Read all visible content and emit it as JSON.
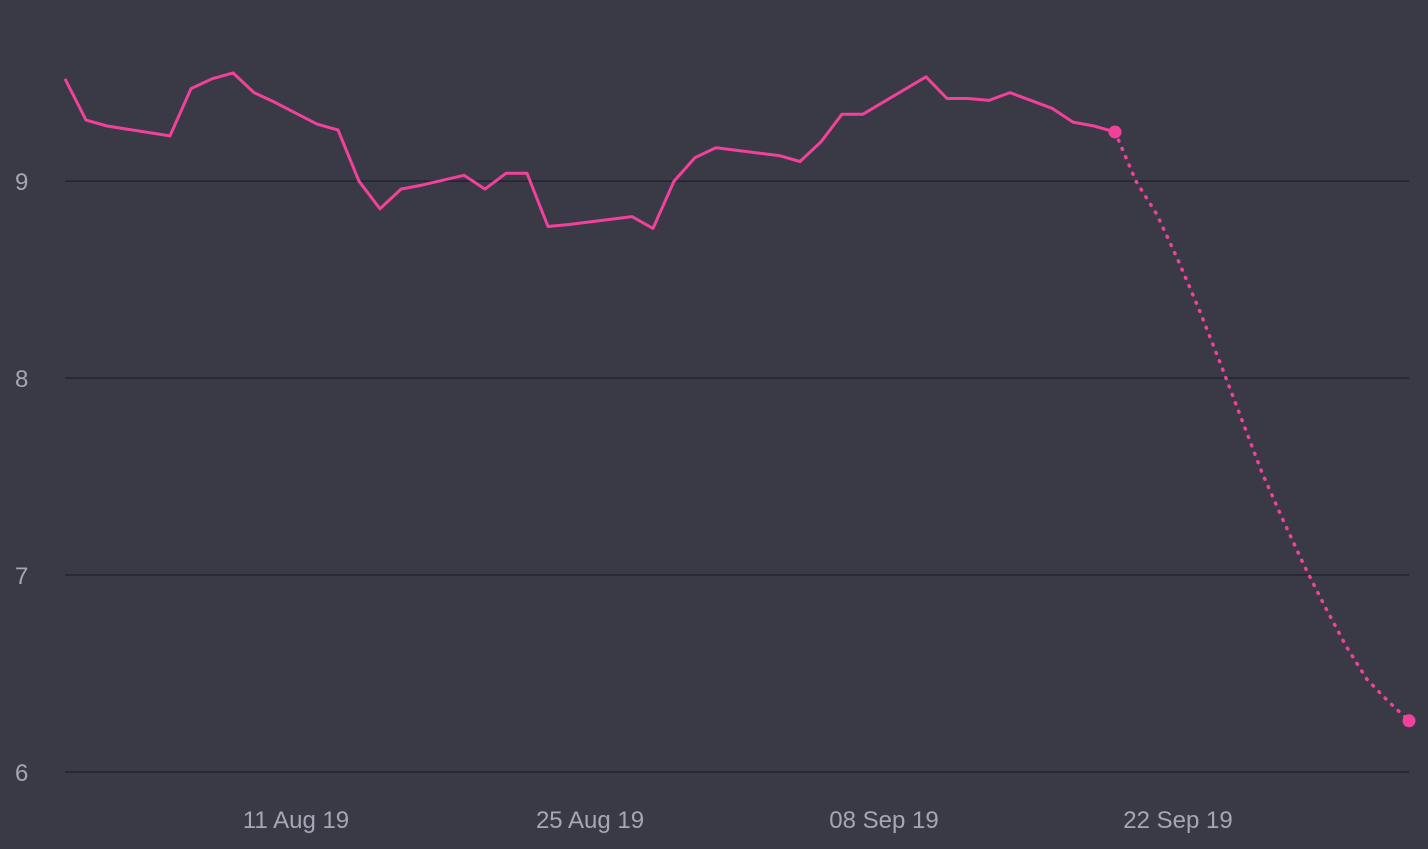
{
  "chart_data": {
    "type": "line",
    "title": "",
    "xlabel": "",
    "ylabel": "",
    "x_range": [
      "2019-07-31",
      "2019-10-03"
    ],
    "ylim": [
      6,
      9.92
    ],
    "y_ticks": [
      {
        "value": 6,
        "label": "6"
      },
      {
        "value": 7,
        "label": "7"
      },
      {
        "value": 8,
        "label": "8"
      },
      {
        "value": 9,
        "label": "9"
      }
    ],
    "x_ticks": [
      {
        "date": "2019-08-11",
        "label": "11 Aug 19"
      },
      {
        "date": "2019-08-25",
        "label": "25 Aug 19"
      },
      {
        "date": "2019-09-08",
        "label": "08 Sep 19"
      },
      {
        "date": "2019-09-22",
        "label": "22 Sep 19"
      }
    ],
    "grid": "horizontal",
    "legend": "none",
    "colors": {
      "line": "#f0429a",
      "grid": "#25242d",
      "background": "#3a3946",
      "tick_text": "#a7a6b3"
    },
    "series": [
      {
        "style": "solid",
        "x": [
          "2019-07-31",
          "2019-08-01",
          "2019-08-02",
          "2019-08-05",
          "2019-08-06",
          "2019-08-07",
          "2019-08-08",
          "2019-08-09",
          "2019-08-10",
          "2019-08-12",
          "2019-08-13",
          "2019-08-14",
          "2019-08-15",
          "2019-08-16",
          "2019-08-17",
          "2019-08-19",
          "2019-08-20",
          "2019-08-21",
          "2019-08-22",
          "2019-08-23",
          "2019-08-24",
          "2019-08-27",
          "2019-08-28",
          "2019-08-29",
          "2019-08-30",
          "2019-08-31",
          "2019-09-03",
          "2019-09-04",
          "2019-09-05",
          "2019-09-06",
          "2019-09-07",
          "2019-09-10",
          "2019-09-11",
          "2019-09-12",
          "2019-09-13",
          "2019-09-14",
          "2019-09-16",
          "2019-09-17",
          "2019-09-18",
          "2019-09-19"
        ],
        "y": [
          9.52,
          9.31,
          9.28,
          9.23,
          9.47,
          9.52,
          9.55,
          9.45,
          9.4,
          9.29,
          9.26,
          9.0,
          8.86,
          8.96,
          8.98,
          9.03,
          8.96,
          9.04,
          9.04,
          8.77,
          8.78,
          8.82,
          8.76,
          9.0,
          9.12,
          9.17,
          9.13,
          9.1,
          9.2,
          9.34,
          9.34,
          9.53,
          9.42,
          9.42,
          9.41,
          9.45,
          9.37,
          9.3,
          9.28,
          9.25
        ]
      },
      {
        "style": "dotted",
        "x": [
          "2019-09-19",
          "2019-09-20",
          "2019-09-21",
          "2019-09-22",
          "2019-09-23",
          "2019-09-24",
          "2019-09-25",
          "2019-09-26",
          "2019-09-27",
          "2019-09-28",
          "2019-09-29",
          "2019-09-30",
          "2019-10-01",
          "2019-10-02",
          "2019-10-03"
        ],
        "y": [
          9.25,
          9.0,
          8.83,
          8.6,
          8.35,
          8.08,
          7.8,
          7.52,
          7.28,
          7.05,
          6.84,
          6.64,
          6.47,
          6.36,
          6.26
        ]
      }
    ]
  }
}
